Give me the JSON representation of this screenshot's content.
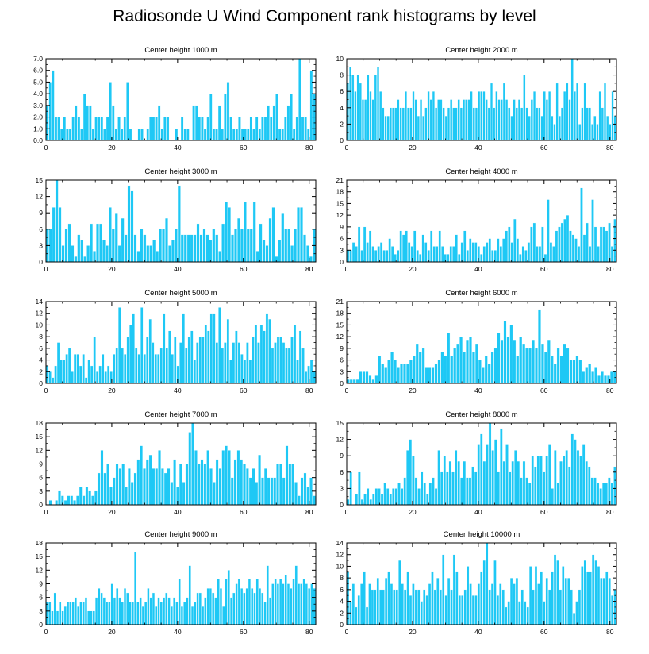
{
  "title": "Radiosonde U Wind Component rank histograms by level",
  "colors": {
    "bar_fill": "#1ec8f5",
    "bar_stroke": "#ffffff",
    "axis": "#000000"
  },
  "chart_data": [
    {
      "type": "bar",
      "title": "Center height 1000 m",
      "xlabel": "",
      "ylabel": "",
      "xlim": [
        0,
        82
      ],
      "xticks": [
        "0",
        "20",
        "40",
        "60",
        "80"
      ],
      "ylim": [
        0,
        7
      ],
      "yticks": [
        "0.0",
        "1.0",
        "2.0",
        "3.0",
        "4.0",
        "5.0",
        "6.0",
        "7.0"
      ],
      "values": [
        3,
        5,
        6,
        2,
        2,
        1,
        2,
        1,
        1,
        2,
        3,
        2,
        1,
        4,
        3,
        3,
        1,
        2,
        2,
        2,
        1,
        2,
        5,
        3,
        1,
        2,
        1,
        2,
        5,
        1,
        0,
        0,
        1,
        1,
        0,
        1,
        2,
        2,
        2,
        3,
        1,
        2,
        2,
        0,
        0,
        1,
        0,
        2,
        1,
        1,
        0,
        3,
        3,
        2,
        2,
        1,
        2,
        4,
        1,
        1,
        3,
        1,
        4,
        5,
        2,
        1,
        1,
        2,
        1,
        1,
        1,
        2,
        1,
        2,
        1,
        2,
        2,
        3,
        2,
        3,
        4,
        1,
        1,
        2,
        3,
        4,
        1,
        2,
        7,
        2,
        2,
        1,
        6,
        4
      ]
    },
    {
      "type": "bar",
      "title": "Center height 2000 m",
      "xlabel": "",
      "ylabel": "",
      "xlim": [
        0,
        82
      ],
      "xticks": [
        "0",
        "20",
        "40",
        "60",
        "80"
      ],
      "ylim": [
        0,
        10
      ],
      "yticks": [
        "0",
        "2",
        "4",
        "6",
        "8",
        "10"
      ],
      "values": [
        7,
        9,
        8,
        6,
        8,
        7,
        5,
        5,
        8,
        6,
        5,
        8,
        9,
        6,
        4,
        3,
        3,
        4,
        4,
        4,
        5,
        4,
        4,
        6,
        4,
        4,
        6,
        5,
        3,
        5,
        3,
        4,
        6,
        5,
        6,
        4,
        5,
        5,
        4,
        3,
        4,
        5,
        4,
        4,
        5,
        4,
        5,
        5,
        5,
        6,
        4,
        4,
        6,
        6,
        6,
        5,
        4,
        7,
        4,
        6,
        5,
        5,
        7,
        5,
        4,
        3,
        5,
        4,
        5,
        4,
        8,
        4,
        3,
        5,
        6,
        4,
        4,
        3,
        6,
        5,
        6,
        3,
        2,
        7,
        3,
        4,
        6,
        7,
        5,
        10,
        6,
        7,
        2,
        4,
        7,
        4,
        4,
        2,
        3,
        2,
        6,
        4,
        7,
        3,
        2,
        6,
        3
      ]
    },
    {
      "type": "bar",
      "title": "Center height 3000 m",
      "xlabel": "",
      "ylabel": "",
      "xlim": [
        0,
        82
      ],
      "xticks": [
        "0",
        "20",
        "40",
        "60",
        "80"
      ],
      "ylim": [
        0,
        15
      ],
      "yticks": [
        "0",
        "3",
        "6",
        "9",
        "12",
        "15"
      ],
      "values": [
        6,
        6,
        10,
        15,
        10,
        3,
        6,
        7,
        3,
        1,
        5,
        4,
        1,
        3,
        7,
        2,
        7,
        7,
        4,
        3,
        10,
        6,
        9,
        3,
        8,
        5,
        14,
        13,
        5,
        2,
        6,
        5,
        3,
        3,
        4,
        2,
        6,
        6,
        8,
        3,
        4,
        6,
        14,
        5,
        5,
        5,
        5,
        5,
        7,
        5,
        6,
        5,
        4,
        6,
        5,
        2,
        7,
        11,
        10,
        5,
        6,
        8,
        6,
        11,
        6,
        6,
        11,
        2,
        7,
        4,
        3,
        8,
        10,
        1,
        4,
        9,
        6,
        6,
        3,
        6,
        10,
        10,
        5,
        3,
        1,
        6
      ]
    },
    {
      "type": "bar",
      "title": "Center height 4000 m",
      "xlabel": "",
      "ylabel": "",
      "xlim": [
        0,
        82
      ],
      "xticks": [
        "0",
        "20",
        "40",
        "60",
        "80"
      ],
      "ylim": [
        0,
        21
      ],
      "yticks": [
        "0",
        "3",
        "6",
        "9",
        "12",
        "15",
        "18",
        "21"
      ],
      "values": [
        3,
        3,
        5,
        4,
        9,
        3,
        9,
        5,
        8,
        4,
        3,
        4,
        5,
        3,
        3,
        6,
        4,
        2,
        3,
        8,
        7,
        8,
        5,
        4,
        8,
        3,
        2,
        7,
        5,
        3,
        8,
        4,
        4,
        8,
        4,
        2,
        2,
        4,
        4,
        7,
        2,
        5,
        8,
        3,
        6,
        5,
        5,
        4,
        2,
        4,
        5,
        6,
        3,
        3,
        6,
        4,
        6,
        8,
        9,
        5,
        11,
        6,
        2,
        4,
        3,
        5,
        9,
        10,
        4,
        4,
        9,
        2,
        16,
        5,
        4,
        8,
        9,
        10,
        11,
        12,
        8,
        7,
        6,
        4,
        19,
        7,
        10,
        4,
        16,
        9,
        4,
        9,
        9,
        8,
        10,
        4,
        11
      ]
    },
    {
      "type": "bar",
      "title": "Center height 5000 m",
      "xlabel": "",
      "ylabel": "",
      "xlim": [
        0,
        82
      ],
      "xticks": [
        "0",
        "20",
        "40",
        "60",
        "80"
      ],
      "ylim": [
        0,
        14
      ],
      "yticks": [
        "0",
        "2",
        "4",
        "6",
        "8",
        "10",
        "12",
        "14"
      ],
      "values": [
        3,
        2,
        1,
        3,
        7,
        4,
        4,
        5,
        6,
        2,
        5,
        5,
        3,
        5,
        1,
        4,
        3,
        8,
        2,
        3,
        5,
        2,
        3,
        2,
        5,
        6,
        13,
        6,
        5,
        8,
        10,
        12,
        6,
        5,
        13,
        5,
        8,
        11,
        7,
        5,
        5,
        6,
        12,
        6,
        9,
        5,
        8,
        3,
        7,
        12,
        6,
        8,
        9,
        4,
        7,
        8,
        8,
        10,
        9,
        12,
        12,
        7,
        13,
        6,
        7,
        11,
        4,
        7,
        9,
        7,
        5,
        4,
        7,
        4,
        8,
        10,
        7,
        10,
        9,
        12,
        11,
        6,
        7,
        8,
        8,
        7,
        6,
        6,
        8,
        10,
        4,
        9,
        6,
        2,
        3,
        4,
        2
      ]
    },
    {
      "type": "bar",
      "title": "Center height 6000 m",
      "xlabel": "",
      "ylabel": "",
      "xlim": [
        0,
        82
      ],
      "xticks": [
        "0",
        "20",
        "40",
        "60",
        "80"
      ],
      "ylim": [
        0,
        21
      ],
      "yticks": [
        "0",
        "3",
        "6",
        "9",
        "12",
        "15",
        "18",
        "21"
      ],
      "values": [
        1,
        1,
        1,
        1,
        3,
        3,
        3,
        2,
        1,
        2,
        7,
        5,
        4,
        6,
        8,
        6,
        4,
        5,
        5,
        5,
        6,
        7,
        10,
        8,
        9,
        4,
        4,
        4,
        5,
        6,
        8,
        7,
        13,
        7,
        9,
        10,
        12,
        8,
        11,
        12,
        8,
        10,
        6,
        4,
        7,
        5,
        8,
        9,
        13,
        11,
        16,
        12,
        15,
        11,
        7,
        12,
        10,
        9,
        9,
        11,
        9,
        19,
        10,
        8,
        11,
        7,
        5,
        9,
        7,
        10,
        9,
        6,
        6,
        7,
        6,
        3,
        4,
        5,
        3,
        4,
        2,
        3,
        2,
        2,
        3,
        3
      ]
    },
    {
      "type": "bar",
      "title": "Center height 7000 m",
      "xlabel": "",
      "ylabel": "",
      "xlim": [
        0,
        82
      ],
      "xticks": [
        "0",
        "20",
        "40",
        "60",
        "80"
      ],
      "ylim": [
        0,
        18
      ],
      "yticks": [
        "0",
        "3",
        "6",
        "9",
        "12",
        "15",
        "18"
      ],
      "values": [
        0,
        1,
        0,
        1,
        3,
        2,
        1,
        2,
        2,
        1,
        2,
        4,
        2,
        4,
        3,
        2,
        3,
        7,
        12,
        7,
        9,
        4,
        6,
        9,
        8,
        9,
        4,
        8,
        5,
        7,
        10,
        13,
        8,
        10,
        11,
        8,
        8,
        12,
        8,
        7,
        8,
        5,
        10,
        4,
        9,
        5,
        9,
        16,
        18,
        12,
        9,
        10,
        9,
        12,
        8,
        5,
        10,
        8,
        12,
        13,
        12,
        6,
        10,
        12,
        10,
        9,
        8,
        6,
        8,
        5,
        11,
        6,
        8,
        6,
        6,
        6,
        9,
        9,
        6,
        13,
        9,
        9,
        5,
        2,
        6,
        7,
        4,
        6,
        2
      ]
    },
    {
      "type": "bar",
      "title": "Center height 8000 m",
      "xlabel": "",
      "ylabel": "",
      "xlim": [
        0,
        82
      ],
      "xticks": [
        "0",
        "20",
        "40",
        "60",
        "80"
      ],
      "ylim": [
        0,
        15
      ],
      "yticks": [
        "0",
        "3",
        "6",
        "9",
        "12",
        "15"
      ],
      "values": [
        1,
        6,
        0,
        2,
        6,
        1,
        2,
        3,
        1,
        2,
        3,
        3,
        2,
        4,
        3,
        2,
        3,
        3,
        4,
        3,
        5,
        10,
        12,
        9,
        5,
        3,
        6,
        4,
        2,
        4,
        5,
        3,
        10,
        6,
        9,
        6,
        8,
        6,
        10,
        8,
        5,
        8,
        5,
        5,
        7,
        6,
        11,
        13,
        8,
        11,
        15,
        10,
        12,
        6,
        14,
        8,
        11,
        6,
        8,
        10,
        8,
        5,
        8,
        5,
        4,
        9,
        7,
        9,
        9,
        6,
        9,
        11,
        3,
        10,
        4,
        8,
        9,
        10,
        7,
        13,
        12,
        10,
        9,
        11,
        8,
        7,
        5,
        5,
        4,
        3,
        4,
        4,
        5,
        4,
        7
      ]
    },
    {
      "type": "bar",
      "title": "Center height 9000 m",
      "xlabel": "",
      "ylabel": "",
      "xlim": [
        0,
        82
      ],
      "xticks": [
        "0",
        "20",
        "40",
        "60",
        "80"
      ],
      "ylim": [
        0,
        18
      ],
      "yticks": [
        "0",
        "3",
        "6",
        "9",
        "12",
        "15",
        "18"
      ],
      "values": [
        5,
        5,
        3,
        7,
        3,
        5,
        3,
        4,
        5,
        5,
        5,
        6,
        4,
        5,
        5,
        6,
        3,
        3,
        3,
        6,
        8,
        7,
        6,
        5,
        5,
        9,
        6,
        8,
        6,
        5,
        8,
        7,
        5,
        5,
        16,
        5,
        6,
        4,
        5,
        8,
        6,
        7,
        4,
        6,
        5,
        6,
        7,
        6,
        4,
        6,
        5,
        10,
        4,
        5,
        6,
        13,
        4,
        5,
        7,
        7,
        4,
        6,
        8,
        8,
        7,
        6,
        10,
        8,
        4,
        10,
        12,
        6,
        7,
        9,
        10,
        8,
        7,
        8,
        10,
        8,
        7,
        10,
        8,
        7,
        5,
        13,
        6,
        9,
        10,
        9,
        10,
        9,
        11,
        9,
        8,
        10,
        13,
        9,
        9,
        10,
        9,
        8,
        9,
        8
      ]
    },
    {
      "type": "bar",
      "title": "Center height 10000 m",
      "xlabel": "",
      "ylabel": "",
      "xlim": [
        0,
        82
      ],
      "xticks": [
        "0",
        "20",
        "40",
        "60",
        "80"
      ],
      "ylim": [
        0,
        14
      ],
      "yticks": [
        "0",
        "2",
        "4",
        "6",
        "8",
        "10",
        "12",
        "14"
      ],
      "values": [
        9,
        4,
        7,
        3,
        5,
        7,
        9,
        3,
        7,
        6,
        6,
        8,
        6,
        6,
        8,
        9,
        7,
        6,
        6,
        11,
        7,
        6,
        9,
        5,
        7,
        6,
        6,
        4,
        6,
        5,
        7,
        9,
        6,
        8,
        6,
        12,
        5,
        8,
        6,
        12,
        9,
        5,
        5,
        6,
        10,
        7,
        5,
        5,
        7,
        9,
        11,
        14,
        6,
        7,
        11,
        5,
        7,
        6,
        3,
        4,
        8,
        7,
        8,
        4,
        6,
        4,
        3,
        10,
        6,
        10,
        7,
        9,
        4,
        8,
        6,
        9,
        12,
        11,
        6,
        10,
        8,
        8,
        6,
        2,
        4,
        6,
        10,
        11,
        9,
        9,
        12,
        11,
        10,
        8,
        8,
        9,
        8,
        5,
        6
      ]
    }
  ]
}
